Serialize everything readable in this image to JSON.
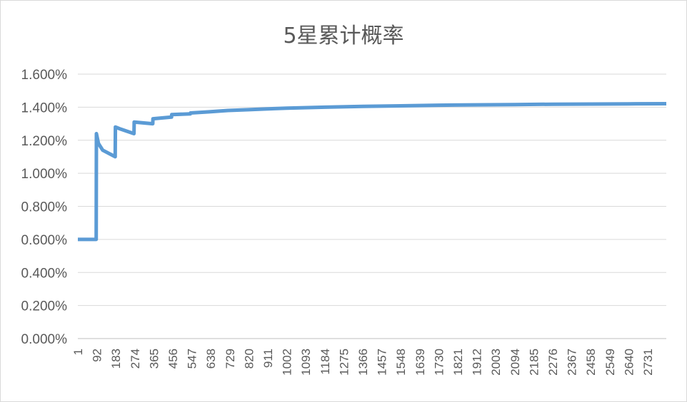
{
  "chart_data": {
    "type": "line",
    "title": "5星累计概率",
    "xlabel": "",
    "ylabel": "",
    "ylim": [
      0,
      0.016
    ],
    "xlim": [
      1,
      2820
    ],
    "y_ticks": [
      "0.000%",
      "0.200%",
      "0.400%",
      "0.600%",
      "0.800%",
      "1.000%",
      "1.200%",
      "1.400%",
      "1.600%"
    ],
    "y_tick_values": [
      0,
      0.002,
      0.004,
      0.006,
      0.008,
      0.01,
      0.012,
      0.014,
      0.016
    ],
    "x_ticks": [
      "1",
      "92",
      "183",
      "274",
      "365",
      "456",
      "547",
      "638",
      "729",
      "820",
      "911",
      "1002",
      "1093",
      "1184",
      "1275",
      "1366",
      "1457",
      "1548",
      "1639",
      "1730",
      "1821",
      "1912",
      "2003",
      "2094",
      "2185",
      "2276",
      "2367",
      "2458",
      "2549",
      "2640",
      "2731"
    ],
    "grid": true,
    "legend": "none",
    "series": [
      {
        "color": "#5b9bd5",
        "points": [
          [
            1,
            0.006
          ],
          [
            89,
            0.006
          ],
          [
            90,
            0.0124
          ],
          [
            100,
            0.0118
          ],
          [
            120,
            0.0114
          ],
          [
            180,
            0.011
          ],
          [
            181,
            0.0128
          ],
          [
            200,
            0.0127
          ],
          [
            270,
            0.0124
          ],
          [
            271,
            0.0131
          ],
          [
            360,
            0.013
          ],
          [
            361,
            0.0133
          ],
          [
            450,
            0.0134
          ],
          [
            451,
            0.01355
          ],
          [
            540,
            0.0136
          ],
          [
            541,
            0.01365
          ],
          [
            630,
            0.01372
          ],
          [
            720,
            0.0138
          ],
          [
            820,
            0.01385
          ],
          [
            911,
            0.0139
          ],
          [
            1002,
            0.01394
          ],
          [
            1184,
            0.014
          ],
          [
            1366,
            0.01405
          ],
          [
            1548,
            0.01408
          ],
          [
            1730,
            0.01412
          ],
          [
            1912,
            0.01414
          ],
          [
            2094,
            0.01416
          ],
          [
            2276,
            0.01418
          ],
          [
            2458,
            0.01419
          ],
          [
            2640,
            0.0142
          ],
          [
            2820,
            0.01421
          ]
        ]
      }
    ]
  }
}
